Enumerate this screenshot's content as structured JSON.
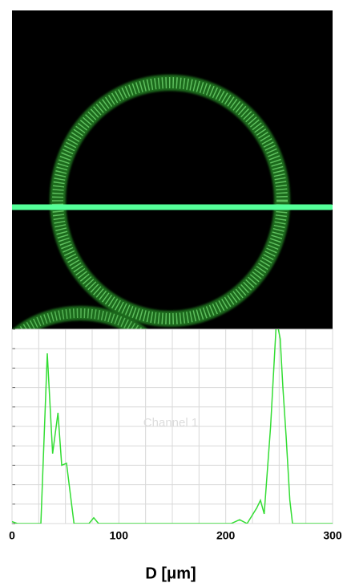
{
  "chart_data": {
    "type": "line",
    "xlabel": "D [μm]",
    "annotation": "Channel 1",
    "x": [
      0,
      5,
      27,
      33,
      38,
      43,
      46.5,
      51,
      58,
      72,
      76.5,
      81,
      205,
      213,
      220,
      229,
      232.5,
      236,
      242,
      247.5,
      251,
      253.5,
      256.5,
      260,
      262.5,
      300
    ],
    "values": [
      1,
      0,
      0,
      87.6,
      36,
      57,
      30,
      31,
      0,
      0,
      3,
      0,
      0,
      2,
      0,
      8,
      12,
      5,
      50,
      105,
      95,
      70,
      45,
      12,
      0,
      0
    ],
    "color": "#33dd33",
    "xlim": [
      0,
      300
    ],
    "xticks": [
      0,
      100,
      200,
      300
    ],
    "xminorticks": [
      25,
      50,
      75,
      125,
      150,
      175,
      225,
      250,
      275
    ],
    "ylim": [
      0,
      100
    ],
    "yticks": [
      0,
      10,
      20,
      30,
      40,
      50,
      60,
      70,
      80,
      90,
      100
    ],
    "grid": true
  }
}
